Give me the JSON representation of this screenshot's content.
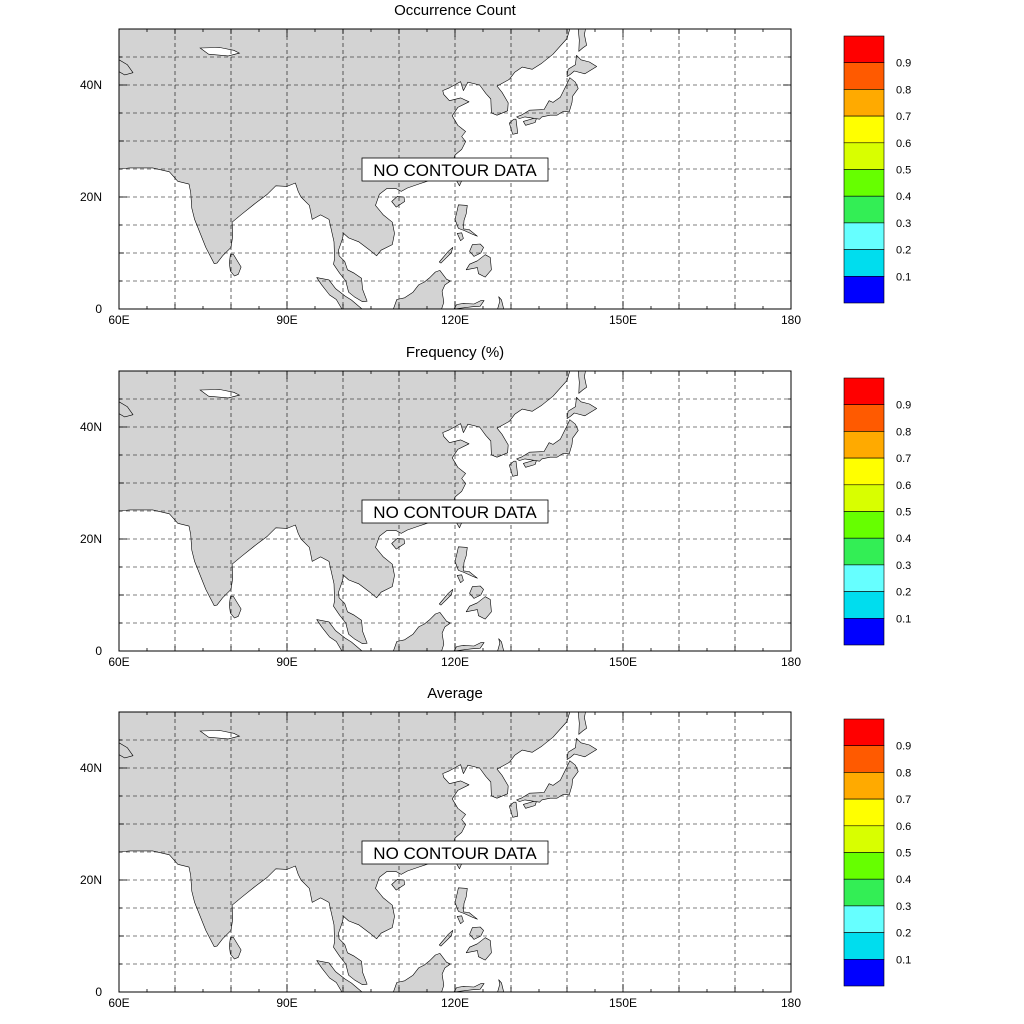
{
  "panels": [
    {
      "title": "Occurrence Count",
      "message": "NO CONTOUR DATA"
    },
    {
      "title": "Frequency (%)",
      "message": "NO CONTOUR DATA"
    },
    {
      "title": "Average",
      "message": "NO CONTOUR DATA"
    }
  ],
  "map": {
    "lon_range": [
      60,
      180
    ],
    "lat_range": [
      0,
      50
    ],
    "lon_ticks": [
      "60E",
      "90E",
      "120E",
      "150E",
      "180"
    ],
    "lat_ticks": [
      "40N",
      "20N",
      "0"
    ],
    "land_color": "#d3d3d3",
    "ocean_color": "#ffffff",
    "gridlines": true
  },
  "colorbar": {
    "labels": [
      "0.9",
      "0.8",
      "0.7",
      "0.6",
      "0.5",
      "0.4",
      "0.3",
      "0.2",
      "0.1"
    ],
    "colors": [
      "#ff0000",
      "#ff5a00",
      "#ffaa00",
      "#ffff00",
      "#d8ff00",
      "#66ff00",
      "#33ee55",
      "#66ffff",
      "#00ddee",
      "#0000ff"
    ],
    "placement": "right"
  }
}
